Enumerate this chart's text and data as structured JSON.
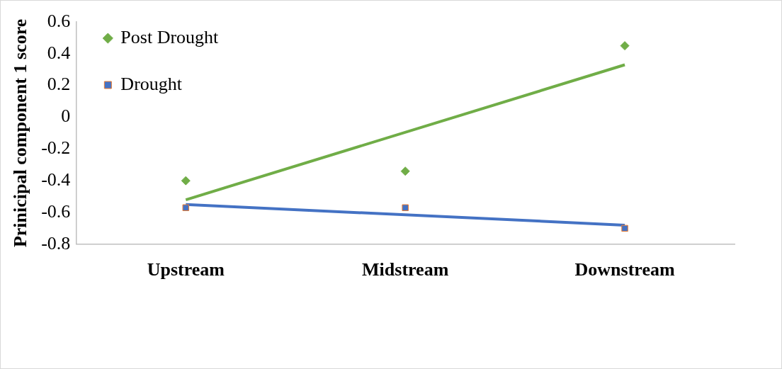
{
  "chart_data": {
    "type": "line",
    "ylabel": "Prinicipal component 1 score",
    "categories": [
      "Upstream",
      "Midstream",
      "Downstream"
    ],
    "series": [
      {
        "name": "Post Drought",
        "type": "scatter",
        "marker": "diamond",
        "color": "#70ad47",
        "values": [
          -0.4,
          -0.34,
          0.45
        ]
      },
      {
        "name": "Drought",
        "type": "scatter",
        "marker": "square",
        "color": "#4472c4",
        "values": [
          -0.57,
          -0.57,
          -0.7
        ]
      },
      {
        "type": "line",
        "marker": "none",
        "color": "#70ad47",
        "x": [
          "Upstream",
          "Downstream"
        ],
        "values": [
          -0.52,
          0.33
        ]
      },
      {
        "type": "line",
        "marker": "none",
        "color": "#4472c4",
        "x": [
          "Upstream",
          "Downstream"
        ],
        "values": [
          -0.55,
          -0.68
        ]
      }
    ],
    "ylim": [
      -0.8,
      0.6
    ],
    "yticks": [
      0.6,
      0.4,
      0.2,
      0,
      -0.2,
      -0.4,
      -0.6,
      -0.8
    ],
    "grid": false,
    "legend": "top left"
  }
}
